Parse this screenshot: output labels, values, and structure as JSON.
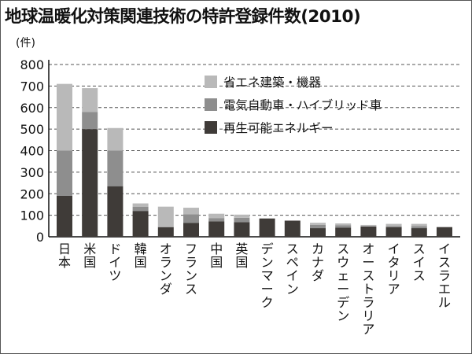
{
  "title": "地球温暖化対策関連技術の特許登録件数(2010)",
  "colors": {
    "energy_saving": "#b9b9b9",
    "electric_vehicle": "#8e8e8e",
    "renewable": "#3f3b38"
  },
  "chart_data": {
    "type": "bar",
    "stacked": true,
    "title": "地球温暖化対策関連技術の特許登録件数(2010)",
    "ylabel": "(件)",
    "ylim": [
      0,
      800
    ],
    "yticks": [
      0,
      100,
      200,
      300,
      400,
      500,
      600,
      700,
      800
    ],
    "grid": "dashed-horizontal",
    "legend_position": "top-right",
    "categories": [
      "日本",
      "米国",
      "ドイツ",
      "韓国",
      "オランダ",
      "フランス",
      "中国",
      "英国",
      "デンマーク",
      "スペイン",
      "カナダ",
      "スウェーデン",
      "オーストラリア",
      "イタリア",
      "スイス",
      "イスラエル"
    ],
    "series": [
      {
        "name": "再生可能エネルギー",
        "color_key": "renewable",
        "values": [
          190,
          500,
          235,
          120,
          45,
          65,
          72,
          68,
          85,
          75,
          40,
          42,
          48,
          45,
          40,
          45
        ]
      },
      {
        "name": "電気自動車・ハイブリッド車",
        "color_key": "electric_vehicle",
        "values": [
          210,
          80,
          165,
          20,
          0,
          40,
          15,
          20,
          0,
          0,
          15,
          12,
          0,
          5,
          10,
          0
        ]
      },
      {
        "name": "省エネ建築・機器",
        "color_key": "energy_saving",
        "values": [
          310,
          110,
          105,
          15,
          95,
          30,
          20,
          15,
          0,
          0,
          10,
          8,
          7,
          10,
          10,
          0
        ]
      }
    ],
    "legend_order": [
      2,
      1,
      0
    ]
  }
}
